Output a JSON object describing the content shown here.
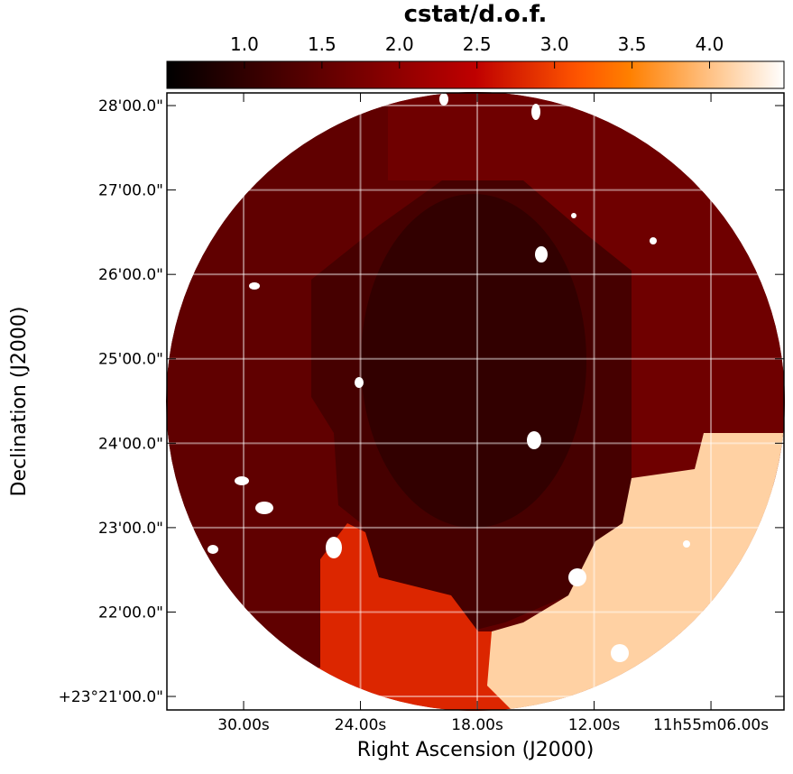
{
  "chart_data": {
    "type": "image",
    "x_label": "Right Ascension (J2000)",
    "y_label": "Declination (J2000)",
    "xlim": [
      33.94,
      2.25
    ],
    "xticks": [
      {
        "value": 30,
        "label": "30.00s"
      },
      {
        "value": 24,
        "label": "24.00s"
      },
      {
        "value": 18,
        "label": "18.00s"
      },
      {
        "value": 12,
        "label": "12.00s"
      },
      {
        "value": 6,
        "label": "11h55m06.00s"
      }
    ],
    "ylim": [
      20.84,
      28.15
    ],
    "yticks": [
      {
        "value": 28,
        "label": "28'00.0\""
      },
      {
        "value": 27,
        "label": "27'00.0\""
      },
      {
        "value": 26,
        "label": "26'00.0\""
      },
      {
        "value": 25,
        "label": "25'00.0\""
      },
      {
        "value": 24,
        "label": "24'00.0\""
      },
      {
        "value": 23,
        "label": "23'00.0\""
      },
      {
        "value": 22,
        "label": "22'00.0\""
      },
      {
        "value": 21,
        "label": "+23°21'00.0\""
      }
    ],
    "grid": true,
    "colormap": "gist_heat",
    "colorbar": {
      "label": "cstat/d.o.f.",
      "lim": [
        0.5,
        4.48
      ],
      "ticks": [
        {
          "value": 1,
          "label": "1.0"
        },
        1.5,
        {
          "value": 2,
          "label": "2.0"
        },
        2.5,
        {
          "value": 3,
          "label": "3.0"
        },
        3.5,
        {
          "value": 4,
          "label": "4.0"
        }
      ]
    },
    "regions": [
      {
        "value": 1.5
      },
      {
        "value": 1.65
      },
      {
        "value": 1.23
      },
      {
        "value": 2.79
      },
      {
        "value": 4.12
      },
      {
        "value": 1.02
      }
    ]
  }
}
